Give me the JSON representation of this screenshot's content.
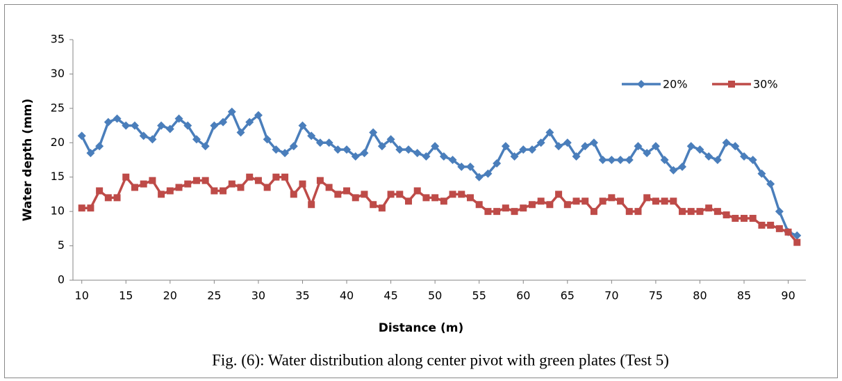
{
  "chart_data": {
    "type": "line",
    "caption": "Fig. (6): Water distribution along center pivot with green plates (Test 5)",
    "x_label": "Distance (m)",
    "y_label": "Water depth (mm)",
    "x": [
      10,
      11,
      12,
      13,
      14,
      15,
      16,
      17,
      18,
      19,
      20,
      21,
      22,
      23,
      24,
      25,
      26,
      27,
      28,
      29,
      30,
      31,
      32,
      33,
      34,
      35,
      36,
      37,
      38,
      39,
      40,
      41,
      42,
      43,
      44,
      45,
      46,
      47,
      48,
      49,
      50,
      51,
      52,
      53,
      54,
      55,
      56,
      57,
      58,
      59,
      60,
      61,
      62,
      63,
      64,
      65,
      66,
      67,
      68,
      69,
      70,
      71,
      72,
      73,
      74,
      75,
      76,
      77,
      78,
      79,
      80,
      81,
      82,
      83,
      84,
      85,
      86,
      87,
      88,
      89,
      90,
      91
    ],
    "series": [
      {
        "name": "20%",
        "color": "#4a7ebb",
        "marker": "diamond",
        "values": [
          21,
          18.5,
          19.5,
          23,
          23.5,
          22.5,
          22.5,
          21,
          20.5,
          22.5,
          22,
          23.5,
          22.5,
          20.5,
          19.5,
          22.5,
          23,
          24.5,
          21.5,
          23,
          24,
          20.5,
          19,
          18.5,
          19.5,
          22.5,
          21,
          20,
          20,
          19,
          19,
          18,
          18.5,
          21.5,
          19.5,
          20.5,
          19,
          19,
          18.5,
          18,
          19.5,
          18,
          17.5,
          16.5,
          16.5,
          15,
          15.5,
          17,
          19.5,
          18,
          19,
          19,
          20,
          21.5,
          19.5,
          20,
          18,
          19.5,
          20,
          17.5,
          17.5,
          17.5,
          17.5,
          19.5,
          18.5,
          19.5,
          17.5,
          16,
          16.5,
          19.5,
          19,
          18,
          17.5,
          20,
          19.5,
          18,
          17.5,
          15.5,
          14,
          10,
          7,
          6.5
        ]
      },
      {
        "name": "30%",
        "color": "#be4b48",
        "marker": "square",
        "values": [
          10.5,
          10.5,
          13,
          12,
          12,
          15,
          13.5,
          14,
          14.5,
          12.5,
          13,
          13.5,
          14,
          14.5,
          14.5,
          13,
          13,
          14,
          13.5,
          15,
          14.5,
          13.5,
          15,
          15,
          12.5,
          14,
          11,
          14.5,
          13.5,
          12.5,
          13,
          12,
          12.5,
          11,
          10.5,
          12.5,
          12.5,
          11.5,
          13,
          12,
          12,
          11.5,
          12.5,
          12.5,
          12,
          11,
          10,
          10,
          10.5,
          10,
          10.5,
          11,
          11.5,
          11,
          12.5,
          11,
          11.5,
          11.5,
          10,
          11.5,
          12,
          11.5,
          10,
          10,
          12,
          11.5,
          11.5,
          11.5,
          10,
          10,
          10,
          10.5,
          10,
          9.5,
          9,
          9,
          9,
          8,
          8,
          7.5,
          7,
          5.5
        ]
      }
    ],
    "xlim": [
      9,
      92
    ],
    "xticks": [
      10,
      15,
      20,
      25,
      30,
      35,
      40,
      45,
      50,
      55,
      60,
      65,
      70,
      75,
      80,
      85,
      90
    ],
    "ylim": [
      0,
      35
    ],
    "yticks": [
      0,
      5,
      10,
      15,
      20,
      25,
      30,
      35
    ],
    "legend": "upper-right"
  }
}
